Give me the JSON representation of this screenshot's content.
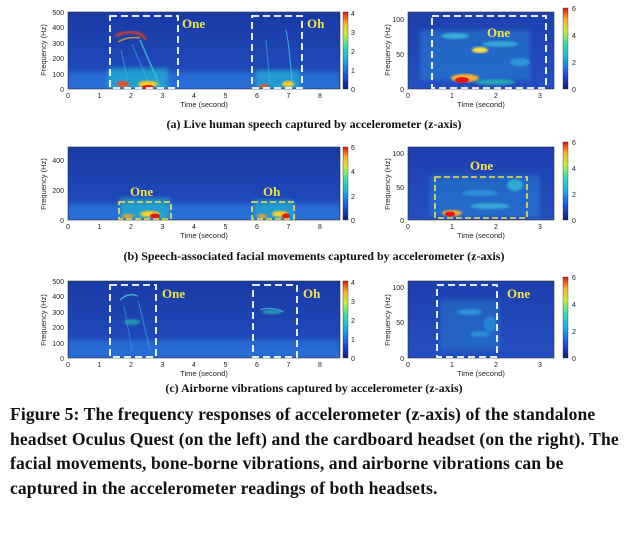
{
  "panels": [
    {
      "caption": "(a) Live human speech captured by accelerometer (z-axis)",
      "left": {
        "ylabel": "Frequency (Hz)",
        "xlabel": "Time (second)",
        "yticks": [
          "0",
          "100",
          "200",
          "300",
          "400",
          "500"
        ],
        "xticks": [
          "0",
          "1",
          "2",
          "3",
          "4",
          "5",
          "6",
          "7",
          "8"
        ],
        "colorbar_ticks": [
          "0",
          "1",
          "2",
          "3",
          "4"
        ],
        "annotations": [
          "One",
          "Oh"
        ],
        "box_color": "#ffffff"
      },
      "right": {
        "ylabel": "Frequency (Hz)",
        "xlabel": "Time (second)",
        "yticks": [
          "0",
          "50",
          "100"
        ],
        "xticks": [
          "0",
          "1",
          "2",
          "3"
        ],
        "colorbar_ticks": [
          "0",
          "2",
          "4",
          "6"
        ],
        "annotations": [
          "One"
        ],
        "box_color": "#ffffff"
      }
    },
    {
      "caption": "(b) Speech-associated facial movements captured by accelerometer (z-axis)",
      "left": {
        "ylabel": "Frequency (Hz)",
        "xlabel": "Time (second)",
        "yticks": [
          "0",
          "200",
          "400"
        ],
        "xticks": [
          "0",
          "1",
          "2",
          "3",
          "4",
          "5",
          "6",
          "7",
          "8"
        ],
        "colorbar_ticks": [
          "0",
          "2",
          "4",
          "6"
        ],
        "annotations": [
          "One",
          "Oh"
        ],
        "box_color": "#f5e04a"
      },
      "right": {
        "ylabel": "Frequency (Hz)",
        "xlabel": "Time (second)",
        "yticks": [
          "0",
          "50",
          "100"
        ],
        "xticks": [
          "0",
          "1",
          "2",
          "3"
        ],
        "colorbar_ticks": [
          "0",
          "2",
          "4",
          "6"
        ],
        "annotations": [
          "One"
        ],
        "box_color": "#f5e04a"
      }
    },
    {
      "caption": "(c) Airborne vibrations captured by accelerometer (z-axis)",
      "left": {
        "ylabel": "Frequency (Hz)",
        "xlabel": "Time (second)",
        "yticks": [
          "0",
          "100",
          "200",
          "300",
          "400",
          "500"
        ],
        "xticks": [
          "0",
          "1",
          "2",
          "3",
          "4",
          "5",
          "6",
          "7",
          "8"
        ],
        "colorbar_ticks": [
          "0",
          "1",
          "2",
          "3",
          "4"
        ],
        "annotations": [
          "One",
          "Oh"
        ],
        "box_color": "#ffffff"
      },
      "right": {
        "ylabel": "Frequency (Hz)",
        "xlabel": "Time (second)",
        "yticks": [
          "0",
          "50",
          "100"
        ],
        "xticks": [
          "0",
          "1",
          "2",
          "3"
        ],
        "colorbar_ticks": [
          "0",
          "2",
          "4",
          "6"
        ],
        "annotations": [
          "One"
        ],
        "box_color": "#ffffff"
      }
    }
  ],
  "figure_caption": "Figure 5: The frequency responses of accelerometer (z-axis) of the standalone headset Oculus Quest (on the left) and the cardboard headset (on the right). The facial movements, bone-borne vibrations, and airborne vibrations can be captured in the accelerometer readings of both headsets.",
  "colors": {
    "spectrogram_background": "#1f3aa8",
    "annotation_text": "#f5e04a",
    "colormap": [
      "#3e26a8",
      "#2d6ff0",
      "#16a9d6",
      "#2cc49a",
      "#a5c23c",
      "#f5b72d",
      "#f9fb15"
    ]
  }
}
